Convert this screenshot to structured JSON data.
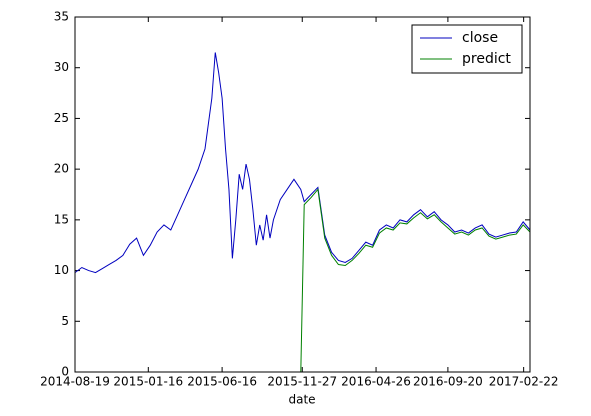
{
  "chart_data": {
    "type": "line",
    "xlabel": "date",
    "x": [
      "2014-08-19",
      "2014-09-02",
      "2014-09-16",
      "2014-09-30",
      "2014-10-14",
      "2014-10-28",
      "2014-11-11",
      "2014-11-25",
      "2014-12-09",
      "2014-12-23",
      "2015-01-06",
      "2015-01-20",
      "2015-02-03",
      "2015-02-17",
      "2015-03-03",
      "2015-03-17",
      "2015-03-31",
      "2015-04-14",
      "2015-04-28",
      "2015-05-12",
      "2015-05-26",
      "2015-06-02",
      "2015-06-09",
      "2015-06-16",
      "2015-06-23",
      "2015-06-30",
      "2015-07-07",
      "2015-07-14",
      "2015-07-21",
      "2015-07-28",
      "2015-08-04",
      "2015-08-11",
      "2015-08-18",
      "2015-08-25",
      "2015-09-01",
      "2015-09-08",
      "2015-09-15",
      "2015-09-22",
      "2015-09-29",
      "2015-10-13",
      "2015-10-27",
      "2015-11-10",
      "2015-11-24",
      "2015-12-01",
      "2015-12-15",
      "2015-12-29",
      "2016-01-12",
      "2016-01-26",
      "2016-02-09",
      "2016-02-23",
      "2016-03-08",
      "2016-03-22",
      "2016-04-05",
      "2016-04-19",
      "2016-05-03",
      "2016-05-17",
      "2016-05-31",
      "2016-06-14",
      "2016-06-28",
      "2016-07-12",
      "2016-07-26",
      "2016-08-09",
      "2016-08-23",
      "2016-09-06",
      "2016-09-20",
      "2016-10-04",
      "2016-10-18",
      "2016-11-01",
      "2016-11-15",
      "2016-11-29",
      "2016-12-13",
      "2016-12-27",
      "2017-01-10",
      "2017-01-24",
      "2017-02-07",
      "2017-02-21",
      "2017-03-07"
    ],
    "series": [
      {
        "name": "close",
        "color": "#0000bf",
        "values": [
          9.8,
          10.3,
          10.0,
          9.8,
          10.2,
          10.6,
          11.0,
          11.5,
          12.6,
          13.2,
          11.5,
          12.5,
          13.8,
          14.5,
          14.0,
          15.5,
          17.0,
          18.5,
          20.0,
          22.0,
          27.0,
          31.5,
          29.5,
          27.0,
          22.0,
          18.0,
          11.2,
          15.0,
          19.5,
          18.0,
          20.5,
          19.0,
          16.0,
          12.5,
          14.5,
          13.0,
          15.5,
          13.2,
          15.0,
          17.0,
          18.0,
          19.0,
          18.0,
          16.8,
          17.5,
          18.2,
          13.5,
          11.8,
          11.0,
          10.8,
          11.2,
          12.0,
          12.8,
          12.5,
          14.0,
          14.5,
          14.2,
          15.0,
          14.8,
          15.5,
          16.0,
          15.3,
          15.8,
          15.0,
          14.5,
          13.8,
          14.0,
          13.7,
          14.2,
          14.5,
          13.6,
          13.3,
          13.5,
          13.7,
          13.8,
          14.8,
          14.0
        ]
      },
      {
        "name": "predict",
        "color": "#008000",
        "values": [
          0,
          0,
          0,
          0,
          0,
          0,
          0,
          0,
          0,
          0,
          0,
          0,
          0,
          0,
          0,
          0,
          0,
          0,
          0,
          0,
          0,
          0,
          0,
          0,
          0,
          0,
          0,
          0,
          0,
          0,
          0,
          0,
          0,
          0,
          0,
          0,
          0,
          0,
          0,
          0,
          0,
          0,
          0,
          16.5,
          17.2,
          18.0,
          13.2,
          11.5,
          10.6,
          10.5,
          11.0,
          11.7,
          12.5,
          12.3,
          13.7,
          14.2,
          14.0,
          14.7,
          14.6,
          15.2,
          15.7,
          15.1,
          15.5,
          14.8,
          14.2,
          13.6,
          13.8,
          13.5,
          14.0,
          14.2,
          13.4,
          13.1,
          13.3,
          13.5,
          13.6,
          14.5,
          13.8
        ]
      }
    ],
    "xlim": [
      "2014-08-19",
      "2017-03-07"
    ],
    "xticks": [
      "2014-08-19",
      "2015-01-16",
      "2015-06-16",
      "2015-11-27",
      "2016-04-26",
      "2016-09-20",
      "2017-02-22"
    ],
    "ylim": [
      0,
      35
    ],
    "yticks": [
      0,
      5,
      10,
      15,
      20,
      25,
      30,
      35
    ],
    "legend": "upper right"
  }
}
